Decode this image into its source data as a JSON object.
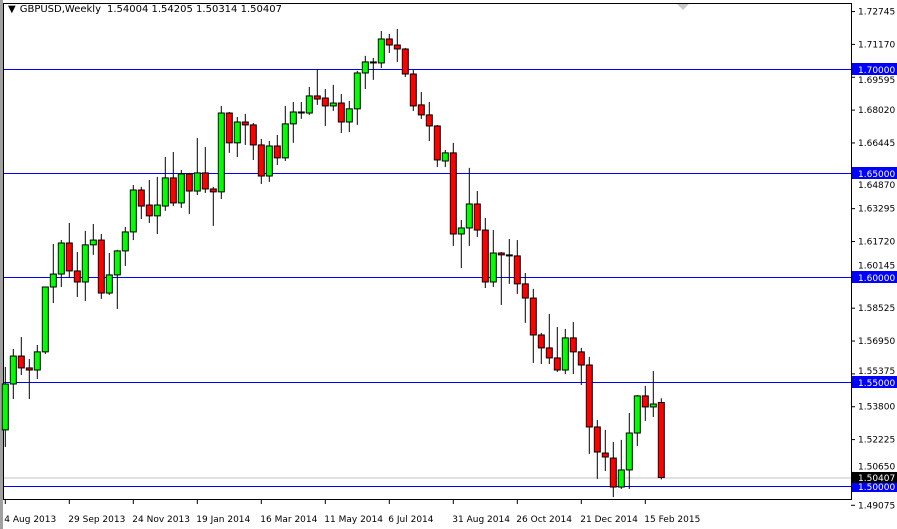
{
  "header": {
    "symbol_timeframe": "GBPUSD,Weekly",
    "ohlc": "1.54004 1.54205 1.50314 1.50407",
    "menu_icon": "triangle-down-icon"
  },
  "colors": {
    "bull": "#00ff00",
    "bear": "#ff0000",
    "level_line": "#0000ff",
    "level_label_bg": "#0000ff",
    "current_price_bg": "#000000",
    "current_price_line": "#c0c0c0"
  },
  "chart_data": {
    "type": "candlestick",
    "symbol": "GBPUSD",
    "timeframe": "Weekly",
    "ylim": [
      1.4875,
      1.731
    ],
    "grid": false,
    "y_tick_labels": [
      "1.72745",
      "1.71170",
      "1.69595",
      "1.68020",
      "1.66445",
      "1.64870",
      "1.63295",
      "1.61720",
      "1.60145",
      "1.58525",
      "1.56950",
      "1.55375",
      "1.53800",
      "1.52225",
      "1.50650",
      "1.49075"
    ],
    "x_tick_labels": [
      "4 Aug 2013",
      "29 Sep 2013",
      "24 Nov 2013",
      "19 Jan 2014",
      "16 Mar 2014",
      "11 May 2014",
      "6 Jul 2014",
      "31 Aug 2014",
      "26 Oct 2014",
      "21 Dec 2014",
      "15 Feb 2015"
    ],
    "horizontal_levels": [
      {
        "price": 1.7,
        "label": "1.70000"
      },
      {
        "price": 1.65,
        "label": "1.65000"
      },
      {
        "price": 1.6,
        "label": "1.60000"
      },
      {
        "price": 1.55,
        "label": "1.55000"
      },
      {
        "price": 1.5,
        "label": "1.50000"
      }
    ],
    "current_price": {
      "price": 1.50407,
      "label": "1.50407"
    },
    "candles_columns": [
      "date",
      "open",
      "high",
      "low",
      "close"
    ],
    "candles": [
      [
        "2013-08-04",
        1.5269,
        1.5571,
        1.5187,
        1.5489
      ],
      [
        "2013-08-11",
        1.5489,
        1.5657,
        1.5417,
        1.5623
      ],
      [
        "2013-08-18",
        1.5623,
        1.5714,
        1.5532,
        1.5566
      ],
      [
        "2013-08-25",
        1.5566,
        1.5609,
        1.5417,
        1.5556
      ],
      [
        "2013-09-01",
        1.5556,
        1.5676,
        1.5513,
        1.5643
      ],
      [
        "2013-09-08",
        1.5643,
        1.5954,
        1.5633,
        1.5954
      ],
      [
        "2013-09-15",
        1.5954,
        1.616,
        1.5877,
        1.6016
      ],
      [
        "2013-09-22",
        1.6016,
        1.6179,
        1.5954,
        1.6165
      ],
      [
        "2013-09-29",
        1.6165,
        1.6261,
        1.5997,
        1.6031
      ],
      [
        "2013-10-06",
        1.6031,
        1.6122,
        1.5906,
        1.5978
      ],
      [
        "2013-10-13",
        1.5978,
        1.6223,
        1.5887,
        1.6156
      ],
      [
        "2013-10-20",
        1.6156,
        1.6256,
        1.6108,
        1.6179
      ],
      [
        "2013-10-27",
        1.6179,
        1.6208,
        1.5897,
        1.5925
      ],
      [
        "2013-11-03",
        1.5925,
        1.6117,
        1.5916,
        1.6012
      ],
      [
        "2013-11-10",
        1.6012,
        1.6132,
        1.5849,
        1.6127
      ],
      [
        "2013-11-17",
        1.6127,
        1.6242,
        1.6055,
        1.6218
      ],
      [
        "2013-11-24",
        1.6218,
        1.6443,
        1.6179,
        1.6419
      ],
      [
        "2013-12-01",
        1.6419,
        1.6434,
        1.628,
        1.6342
      ],
      [
        "2013-12-08",
        1.6347,
        1.6467,
        1.6261,
        1.6295
      ],
      [
        "2013-12-15",
        1.6295,
        1.6482,
        1.6208,
        1.6347
      ],
      [
        "2013-12-22",
        1.6342,
        1.6577,
        1.6319,
        1.6477
      ],
      [
        "2013-12-29",
        1.6477,
        1.6601,
        1.6342,
        1.6357
      ],
      [
        "2014-01-05",
        1.6357,
        1.6515,
        1.6333,
        1.6496
      ],
      [
        "2014-01-12",
        1.6496,
        1.6501,
        1.6304,
        1.6414
      ],
      [
        "2014-01-19",
        1.6414,
        1.6668,
        1.6395,
        1.6501
      ],
      [
        "2014-01-26",
        1.6501,
        1.6625,
        1.6405,
        1.6424
      ],
      [
        "2014-02-02",
        1.6424,
        1.6434,
        1.6247,
        1.641
      ],
      [
        "2014-02-09",
        1.641,
        1.6822,
        1.6376,
        1.6788
      ],
      [
        "2014-02-16",
        1.6788,
        1.6793,
        1.6597,
        1.6645
      ],
      [
        "2014-02-23",
        1.6645,
        1.6769,
        1.6577,
        1.6745
      ],
      [
        "2014-03-02",
        1.6745,
        1.6784,
        1.6635,
        1.6731
      ],
      [
        "2014-03-09",
        1.6731,
        1.674,
        1.6563,
        1.6635
      ],
      [
        "2014-03-16",
        1.6635,
        1.6664,
        1.6448,
        1.6486
      ],
      [
        "2014-03-23",
        1.6486,
        1.6654,
        1.6458,
        1.663
      ],
      [
        "2014-03-30",
        1.663,
        1.6683,
        1.6539,
        1.6573
      ],
      [
        "2014-04-06",
        1.6573,
        1.6822,
        1.6558,
        1.6736
      ],
      [
        "2014-04-13",
        1.6736,
        1.6841,
        1.6645,
        1.6793
      ],
      [
        "2014-04-20",
        1.6788,
        1.6841,
        1.676,
        1.6793
      ],
      [
        "2014-04-27",
        1.6788,
        1.6913,
        1.6779,
        1.687
      ],
      [
        "2014-05-04",
        1.687,
        1.6999,
        1.6827,
        1.6855
      ],
      [
        "2014-05-11",
        1.686,
        1.6903,
        1.6726,
        1.6822
      ],
      [
        "2014-05-18",
        1.6822,
        1.6923,
        1.6798,
        1.6836
      ],
      [
        "2014-05-25",
        1.6836,
        1.6879,
        1.6692,
        1.6745
      ],
      [
        "2014-06-01",
        1.6745,
        1.6846,
        1.6697,
        1.6808
      ],
      [
        "2014-06-08",
        1.6808,
        1.699,
        1.6731,
        1.698
      ],
      [
        "2014-06-15",
        1.698,
        1.7062,
        1.6903,
        1.7033
      ],
      [
        "2014-06-22",
        1.7028,
        1.7052,
        1.6947,
        1.7033
      ],
      [
        "2014-06-29",
        1.7028,
        1.7181,
        1.7004,
        1.7143
      ],
      [
        "2014-07-06",
        1.7143,
        1.7167,
        1.7076,
        1.7114
      ],
      [
        "2014-07-13",
        1.7114,
        1.7191,
        1.7033,
        1.7095
      ],
      [
        "2014-07-20",
        1.7095,
        1.71,
        1.6961,
        1.6975
      ],
      [
        "2014-07-27",
        1.6975,
        1.6994,
        1.6798,
        1.6822
      ],
      [
        "2014-08-03",
        1.6827,
        1.6889,
        1.676,
        1.6779
      ],
      [
        "2014-08-10",
        1.6779,
        1.6841,
        1.6654,
        1.6726
      ],
      [
        "2014-08-17",
        1.6726,
        1.6731,
        1.6529,
        1.6563
      ],
      [
        "2014-08-24",
        1.6558,
        1.6611,
        1.6529,
        1.6597
      ],
      [
        "2014-08-31",
        1.6597,
        1.6645,
        1.6151,
        1.6208
      ],
      [
        "2014-09-07",
        1.6208,
        1.6275,
        1.6045,
        1.6237
      ],
      [
        "2014-09-14",
        1.6237,
        1.6525,
        1.6151,
        1.6352
      ],
      [
        "2014-09-21",
        1.6352,
        1.6414,
        1.6194,
        1.6227
      ],
      [
        "2014-09-28",
        1.6227,
        1.6285,
        1.5949,
        1.5978
      ],
      [
        "2014-10-05",
        1.5978,
        1.6227,
        1.5954,
        1.6117
      ],
      [
        "2014-10-12",
        1.6117,
        1.6122,
        1.5868,
        1.6108
      ],
      [
        "2014-10-19",
        1.6108,
        1.6184,
        1.5969,
        1.6103
      ],
      [
        "2014-10-26",
        1.6103,
        1.6179,
        1.5921,
        1.5969
      ],
      [
        "2014-11-02",
        1.5969,
        1.6021,
        1.5782,
        1.5901
      ],
      [
        "2014-11-09",
        1.5901,
        1.5945,
        1.559,
        1.5724
      ],
      [
        "2014-11-16",
        1.5724,
        1.5734,
        1.5585,
        1.5662
      ],
      [
        "2014-11-23",
        1.5662,
        1.5825,
        1.5585,
        1.5614
      ],
      [
        "2014-11-30",
        1.5614,
        1.5762,
        1.5547,
        1.5556
      ],
      [
        "2014-12-07",
        1.5556,
        1.5753,
        1.5537,
        1.571
      ],
      [
        "2014-12-14",
        1.571,
        1.5786,
        1.5537,
        1.5643
      ],
      [
        "2014-12-21",
        1.5643,
        1.5662,
        1.5484,
        1.558
      ],
      [
        "2014-12-28",
        1.558,
        1.5619,
        1.5154,
        1.5283
      ],
      [
        "2015-01-04",
        1.5283,
        1.5317,
        1.5034,
        1.5163
      ],
      [
        "2015-01-11",
        1.5158,
        1.5269,
        1.5072,
        1.5139
      ],
      [
        "2015-01-18",
        1.5134,
        1.5211,
        1.4947,
        1.4995
      ],
      [
        "2015-01-25",
        1.4995,
        1.5221,
        1.4986,
        1.5077
      ],
      [
        "2015-02-01",
        1.5077,
        1.535,
        1.4986,
        1.5254
      ],
      [
        "2015-02-08",
        1.5254,
        1.5436,
        1.5192,
        1.5432
      ],
      [
        "2015-02-15",
        1.5432,
        1.548,
        1.5312,
        1.5379
      ],
      [
        "2015-02-22",
        1.5379,
        1.5551,
        1.5331,
        1.5393
      ],
      [
        "2015-03-01",
        1.54004,
        1.54205,
        1.50314,
        1.50407
      ]
    ]
  }
}
